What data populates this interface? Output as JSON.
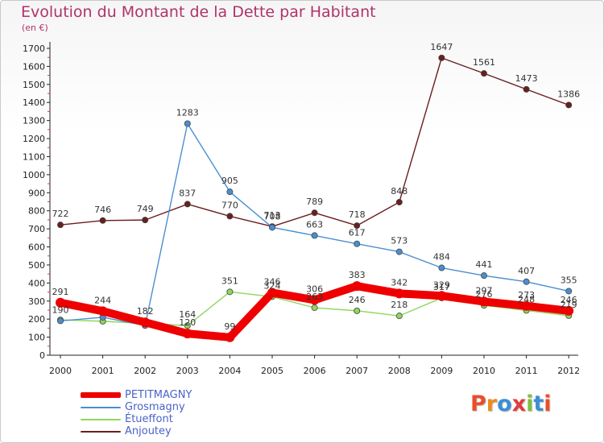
{
  "header": {
    "title": "Evolution du Montant de la Dette par Habitant",
    "unit": "(en €)"
  },
  "colors": {
    "title": "#b0336a",
    "legend_text": "#4a63c7"
  },
  "chart_data": {
    "type": "line",
    "title": "Evolution du Montant de la Dette par Habitant",
    "subtitle": "(en €)",
    "xlabel": "",
    "ylabel": "",
    "x": [
      "2000",
      "2001",
      "2002",
      "2003",
      "2004",
      "2005",
      "2006",
      "2007",
      "2008",
      "2009",
      "2010",
      "2011",
      "2012"
    ],
    "ylim": [
      0,
      1700
    ],
    "yticks": [
      0,
      100,
      200,
      300,
      400,
      500,
      600,
      700,
      800,
      900,
      1000,
      1100,
      1200,
      1300,
      1400,
      1500,
      1600,
      1700
    ],
    "grid": false,
    "legend_position": "bottom-left",
    "series": [
      {
        "name": "PETITMAGNY",
        "color": "#ee0000",
        "values": [
          291,
          244,
          182,
          120,
          99,
          346,
          306,
          383,
          342,
          329,
          297,
          273,
          246
        ],
        "labels": [
          "291",
          "244",
          "182",
          "120",
          "99",
          "346",
          "306",
          "383",
          "342",
          "329",
          "297",
          "273",
          "246"
        ]
      },
      {
        "name": "Grosmagny",
        "color": "#4a8fd0",
        "values": [
          190,
          210,
          164,
          1283,
          905,
          708,
          663,
          617,
          573,
          484,
          441,
          407,
          355
        ],
        "labels": [
          "190",
          "",
          "",
          "1283",
          "905",
          "708",
          "663",
          "617",
          "573",
          "484",
          "441",
          "407",
          "355"
        ]
      },
      {
        "name": "Étueffont",
        "color": "#8fd65c",
        "values": [
          196,
          188,
          176,
          164,
          351,
          324,
          263,
          246,
          218,
          317,
          276,
          248,
          219
        ],
        "labels": [
          "",
          "",
          "",
          "164",
          "351",
          "324",
          "263",
          "246",
          "218",
          "317",
          "276",
          "248",
          "219"
        ]
      },
      {
        "name": "Anjoutey",
        "color": "#6b1e1e",
        "values": [
          722,
          746,
          749,
          837,
          770,
          713,
          789,
          718,
          848,
          1647,
          1561,
          1473,
          1386
        ],
        "labels": [
          "722",
          "746",
          "749",
          "837",
          "770",
          "713",
          "789",
          "718",
          "848",
          "1647",
          "1561",
          "1473",
          "1386"
        ]
      }
    ]
  },
  "logo": {
    "letters": [
      "P",
      "r",
      "o",
      "x",
      "i",
      "t",
      "i"
    ],
    "colors": [
      "#e94e2b",
      "#f08a1c",
      "#3a8fd6",
      "#e23b3b",
      "#7fbf3f",
      "#3a8fd6",
      "#e94e2b"
    ]
  }
}
